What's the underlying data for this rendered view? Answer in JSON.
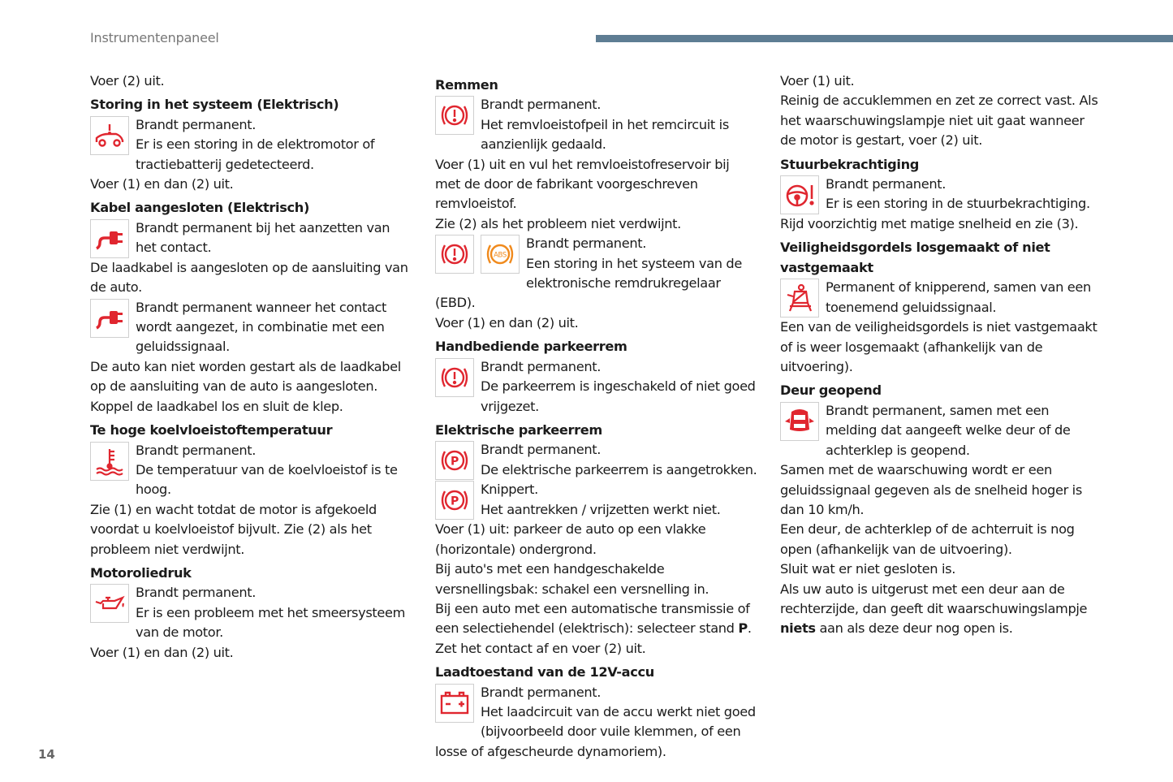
{
  "header": {
    "section": "Instrumentenpaneel",
    "page_number": "14",
    "accent_color": "#5e7d93"
  },
  "colors": {
    "warning_red": "#e0262f",
    "warning_orange": "#f08a1d"
  },
  "columns": [
    [
      {
        "t": "p",
        "text": "Voer (2) uit."
      },
      {
        "t": "h",
        "text": "Storing in het systeem (Elektrisch)"
      },
      {
        "t": "i",
        "icons": [
          "car-fault"
        ],
        "text": "Brandt permanent.\nEr is een storing in de elektromotor of tractiebatterij gedetecteerd."
      },
      {
        "t": "p",
        "text": "Voer (1) en dan (2) uit."
      },
      {
        "t": "h",
        "text": "Kabel aangesloten (Elektrisch)"
      },
      {
        "t": "i",
        "icons": [
          "plug"
        ],
        "text": "Brandt permanent bij het aanzetten van het contact."
      },
      {
        "t": "p",
        "text": "De laadkabel is aangesloten op de aansluiting van de auto."
      },
      {
        "t": "i",
        "icons": [
          "plug"
        ],
        "text": "Brandt permanent wanneer het contact wordt aangezet, in combinatie met een geluidssignaal."
      },
      {
        "t": "p",
        "text": "De auto kan niet worden gestart als de laadkabel op de aansluiting van de auto is aangesloten."
      },
      {
        "t": "p",
        "text": "Koppel de laadkabel los en sluit de klep."
      },
      {
        "t": "h",
        "text": "Te hoge koelvloeistoftemperatuur"
      },
      {
        "t": "i",
        "icons": [
          "coolant-temp"
        ],
        "text": "Brandt permanent.\nDe temperatuur van de koelvloeistof is te hoog."
      },
      {
        "t": "p",
        "text": "Zie (1) en wacht totdat de motor is afgekoeld voordat u koelvloeistof bijvult. Zie (2) als het probleem niet verdwijnt."
      },
      {
        "t": "h",
        "text": "Motoroliedruk"
      },
      {
        "t": "i",
        "icons": [
          "oil-pressure"
        ],
        "text": "Brandt permanent.\nEr is een probleem met het smeersysteem van de motor."
      },
      {
        "t": "p",
        "text": "Voer (1) en dan (2) uit."
      }
    ],
    [
      {
        "t": "h",
        "text": "Remmen"
      },
      {
        "t": "i",
        "icons": [
          "brake"
        ],
        "text": "Brandt permanent.\nHet remvloeistofpeil in het remcircuit is aanzienlijk gedaald."
      },
      {
        "t": "p",
        "text": "Voer (1) uit en vul het remvloeistofreservoir bij met de door de fabrikant voorgeschreven remvloeistof."
      },
      {
        "t": "p",
        "text": "Zie (2) als het probleem niet verdwijnt."
      },
      {
        "t": "i",
        "icons": [
          "brake",
          "abs"
        ],
        "text": "Brandt permanent.\nEen storing in het systeem van de elektronische remdrukregelaar (EBD)."
      },
      {
        "t": "p",
        "text": "Voer (1) en dan (2) uit."
      },
      {
        "t": "h",
        "text": "Handbediende parkeerrem"
      },
      {
        "t": "i",
        "icons": [
          "brake"
        ],
        "text": "Brandt permanent.\nDe parkeerrem is ingeschakeld of niet goed vrijgezet."
      },
      {
        "t": "h",
        "text": "Elektrische parkeerrem"
      },
      {
        "t": "i",
        "icons": [
          "parking-brake"
        ],
        "text": "Brandt permanent.\nDe elektrische parkeerrem is aangetrokken."
      },
      {
        "t": "i",
        "icons": [
          "parking-brake"
        ],
        "text": "Knippert.\nHet aantrekken / vrijzetten werkt niet."
      },
      {
        "t": "p",
        "text": "Voer (1) uit: parkeer de auto op een vlakke (horizontale) ondergrond."
      },
      {
        "t": "p",
        "text": "Bij auto's met een handgeschakelde versnellingsbak: schakel een versnelling in."
      },
      {
        "t": "p",
        "parts": [
          {
            "text": "Bij een auto met een automatische transmissie of een selectiehendel (elektrisch): selecteer stand "
          },
          {
            "text": "P",
            "b": true
          },
          {
            "text": "."
          }
        ]
      },
      {
        "t": "p",
        "text": "Zet het contact af en voer (2) uit."
      },
      {
        "t": "h",
        "text": "Laadtoestand van de 12V-accu"
      },
      {
        "t": "i",
        "icons": [
          "battery"
        ],
        "text": "Brandt permanent.\nHet laadcircuit van de accu werkt niet goed (bijvoorbeeld door vuile klemmen, of een losse of afgescheurde dynamoriem)."
      }
    ],
    [
      {
        "t": "p",
        "text": "Voer (1) uit."
      },
      {
        "t": "p",
        "text": "Reinig de accuklemmen en zet ze correct vast. Als het waarschuwingslampje niet uit gaat wanneer de motor is gestart, voer (2) uit."
      },
      {
        "t": "h",
        "text": "Stuurbekrachtiging"
      },
      {
        "t": "i",
        "icons": [
          "steering"
        ],
        "text": "Brandt permanent.\nEr is een storing in de stuurbekrachtiging."
      },
      {
        "t": "p",
        "text": "Rijd voorzichtig met matige snelheid en zie (3)."
      },
      {
        "t": "h",
        "text": "Veiligheidsgordels losgemaakt of niet vastgemaakt"
      },
      {
        "t": "i",
        "icons": [
          "seatbelt"
        ],
        "text": "Permanent of knipperend, samen van een toenemend geluidssignaal."
      },
      {
        "t": "p",
        "text": "Een van de veiligheidsgordels is niet vastgemaakt of is weer losgemaakt (afhankelijk van de uitvoering)."
      },
      {
        "t": "h",
        "text": "Deur geopend"
      },
      {
        "t": "i",
        "icons": [
          "door-open"
        ],
        "text": "Brandt permanent, samen met een melding dat aangeeft welke deur of de achterklep is geopend."
      },
      {
        "t": "p",
        "text": "Samen met de waarschuwing wordt er een geluidssignaal gegeven als de snelheid hoger is dan 10 km/h."
      },
      {
        "t": "p",
        "text": "Een deur, de achterklep of de achterruit is nog open (afhankelijk van de uitvoering)."
      },
      {
        "t": "p",
        "text": "Sluit wat er niet gesloten is."
      },
      {
        "t": "p",
        "parts": [
          {
            "text": "Als uw auto is uitgerust met een deur aan de rechterzijde, dan geeft dit waarschuwingslampje "
          },
          {
            "text": "niets",
            "b": true
          },
          {
            "text": " aan als deze deur nog open is."
          }
        ]
      }
    ]
  ]
}
